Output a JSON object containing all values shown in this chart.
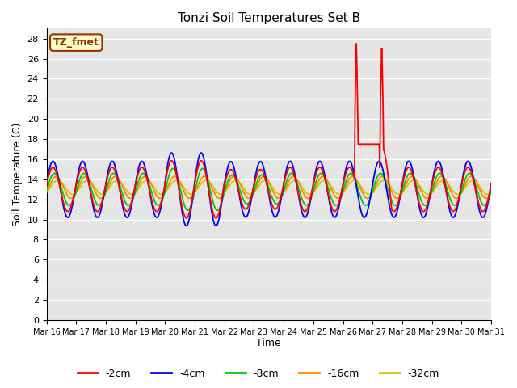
{
  "title": "Tonzi Soil Temperatures Set B",
  "xlabel": "Time",
  "ylabel": "Soil Temperature (C)",
  "ylim": [
    0,
    29
  ],
  "yticks": [
    0,
    2,
    4,
    6,
    8,
    10,
    12,
    14,
    16,
    18,
    20,
    22,
    24,
    26,
    28
  ],
  "bg_color": "#e5e5e5",
  "legend_label": "TZ_fmet",
  "legend_bg": "#ffffcc",
  "legend_border": "#993300",
  "series_colors": {
    "-2cm": "#ff0000",
    "-4cm": "#0000ff",
    "-8cm": "#00cc00",
    "-16cm": "#ff8800",
    "-32cm": "#cccc00"
  },
  "x_labels": [
    "Mar 16",
    "Mar 17",
    "Mar 18",
    "Mar 19",
    "Mar 20",
    "Mar 21",
    "Mar 22",
    "Mar 23",
    "Mar 24",
    "Mar 25",
    "Mar 26",
    "Mar 27",
    "Mar 28",
    "Mar 29",
    "Mar 30",
    "Mar 31"
  ],
  "n_days": 15
}
